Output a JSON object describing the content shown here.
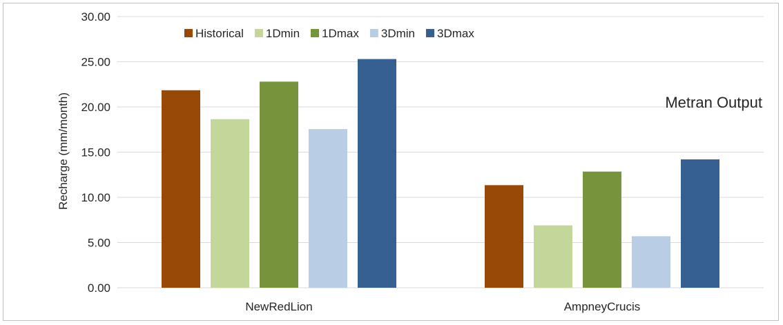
{
  "chart_data": {
    "type": "bar",
    "title": "",
    "annotation": "Metran Output",
    "xlabel": "",
    "ylabel": "Recharge (mm/month)",
    "ylim": [
      0,
      30
    ],
    "yticks": [
      "0.00",
      "5.00",
      "10.00",
      "15.00",
      "20.00",
      "25.00",
      "30.00"
    ],
    "grid": true,
    "legend_position": "top",
    "categories": [
      "NewRedLion",
      "AmpneyCrucis"
    ],
    "series": [
      {
        "name": "Historical",
        "color": "#984807",
        "values": [
          21.85,
          11.35
        ]
      },
      {
        "name": "1Dmin",
        "color": "#c4d79b",
        "values": [
          18.65,
          6.9
        ]
      },
      {
        "name": "1Dmax",
        "color": "#77933c",
        "values": [
          22.8,
          12.85
        ]
      },
      {
        "name": "3Dmin",
        "color": "#b9cde5",
        "values": [
          17.55,
          5.7
        ]
      },
      {
        "name": "3Dmax",
        "color": "#366092",
        "values": [
          25.3,
          14.2
        ]
      }
    ]
  }
}
